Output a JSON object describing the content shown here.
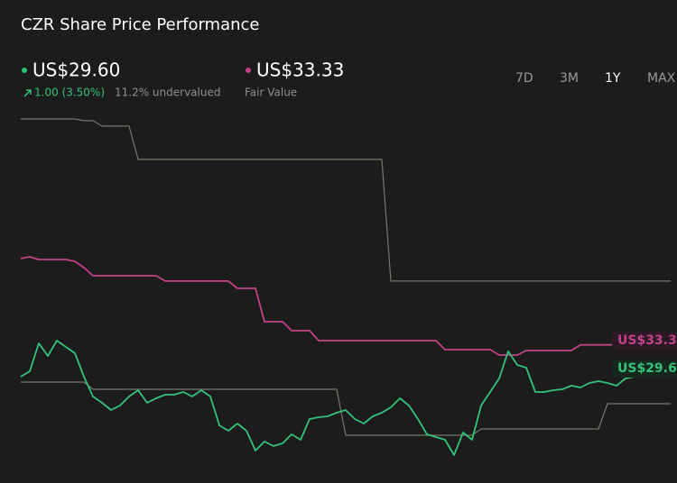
{
  "header": {
    "title": "CZR Share Price Performance",
    "price": {
      "value_label": "US$29.60",
      "change": "1.00 (3.50%)",
      "valuation": "11.2% undervalued"
    },
    "fair_value": {
      "value_label": "US$33.33",
      "label": "Fair Value"
    }
  },
  "timeframes": [
    "7D",
    "3M",
    "1Y",
    "MAX"
  ],
  "active_timeframe": 2,
  "chart_data": {
    "type": "line",
    "ylim": [
      17.5,
      66
    ],
    "series": [
      {
        "color": "#77776a",
        "values": [
          64.51,
          64.51,
          64.51,
          64.51,
          64.51,
          64.51,
          64.51,
          64.27,
          64.27,
          63.52,
          63.52,
          63.52,
          63.52,
          58.92,
          58.92,
          58.92,
          58.92,
          58.92,
          58.92,
          58.92,
          58.92,
          58.92,
          58.92,
          58.92,
          58.92,
          58.92,
          58.92,
          58.92,
          58.92,
          58.92,
          58.92,
          58.92,
          58.92,
          58.92,
          58.92,
          58.92,
          58.92,
          58.92,
          58.92,
          58.92,
          58.92,
          42.13,
          42.13,
          42.13,
          42.13,
          42.13,
          42.13,
          42.13,
          42.13,
          42.13,
          42.13,
          42.13,
          42.13,
          42.13,
          42.13,
          42.13,
          42.13,
          42.13,
          42.13,
          42.13,
          42.13,
          42.13,
          42.13,
          42.13,
          42.13,
          42.13,
          42.13,
          42.13,
          42.13,
          42.13,
          42.13,
          42.13,
          42.13
        ]
      },
      {
        "color": "#77776a",
        "values": [
          28.2,
          28.2,
          28.2,
          28.2,
          28.2,
          28.2,
          28.2,
          28.2,
          27.2,
          27.2,
          27.2,
          27.2,
          27.2,
          27.2,
          27.2,
          27.2,
          27.2,
          27.2,
          27.2,
          27.2,
          27.2,
          27.2,
          27.2,
          27.2,
          27.2,
          27.2,
          27.2,
          27.2,
          27.2,
          27.2,
          27.2,
          27.2,
          27.2,
          27.2,
          27.2,
          27.2,
          20.86,
          20.86,
          20.86,
          20.86,
          20.86,
          20.86,
          20.86,
          20.86,
          20.86,
          20.86,
          20.86,
          20.86,
          20.86,
          20.86,
          20.86,
          21.73,
          21.73,
          21.73,
          21.73,
          21.73,
          21.73,
          21.73,
          21.73,
          21.73,
          21.73,
          21.73,
          21.73,
          21.73,
          21.73,
          25.21,
          25.21,
          25.21,
          25.21,
          25.21,
          25.21,
          25.21,
          25.21
        ]
      },
      {
        "name": "Fair Value",
        "color": "#c2428a",
        "values": [
          45.24,
          45.48,
          45.11,
          45.11,
          45.11,
          45.11,
          44.86,
          43.99,
          42.87,
          42.87,
          42.87,
          42.87,
          42.87,
          42.87,
          42.87,
          42.87,
          42.13,
          42.13,
          42.13,
          42.13,
          42.13,
          42.13,
          42.13,
          42.13,
          41.13,
          41.13,
          41.13,
          36.53,
          36.53,
          36.53,
          35.29,
          35.29,
          35.29,
          33.92,
          33.92,
          33.92,
          33.92,
          33.92,
          33.92,
          33.92,
          33.92,
          33.92,
          33.92,
          33.92,
          33.92,
          33.92,
          33.92,
          32.67,
          32.67,
          32.67,
          32.67,
          32.67,
          32.67,
          31.93,
          31.93,
          31.93,
          32.55,
          32.55,
          32.55,
          32.55,
          32.55,
          32.55,
          33.33,
          33.33,
          33.33,
          33.33,
          33.33,
          null,
          null,
          null,
          null,
          null,
          null
        ]
      },
      {
        "color": "#34c27a",
        "values": [
          28.94,
          29.69,
          33.54,
          31.8,
          33.92,
          33.05,
          32.18,
          28.94,
          26.21,
          25.34,
          24.34,
          24.96,
          26.21,
          27.08,
          25.34,
          25.96,
          26.46,
          26.46,
          26.83,
          26.21,
          27.08,
          26.21,
          22.23,
          21.48,
          22.48,
          21.48,
          18.74,
          19.99,
          19.37,
          19.74,
          20.98,
          20.24,
          23.1,
          23.35,
          23.47,
          23.97,
          24.34,
          23.1,
          22.48,
          23.47,
          23.97,
          24.71,
          25.96,
          24.96,
          23.1,
          20.98,
          20.61,
          20.24,
          18.12,
          21.23,
          20.24,
          24.96,
          26.83,
          28.69,
          32.43,
          30.56,
          30.19,
          26.83,
          26.83,
          27.08,
          27.2,
          27.7,
          27.45,
          28.07,
          28.32,
          28.07,
          27.7,
          28.69,
          28.94,
          29.6,
          null,
          null,
          null
        ]
      }
    ]
  }
}
